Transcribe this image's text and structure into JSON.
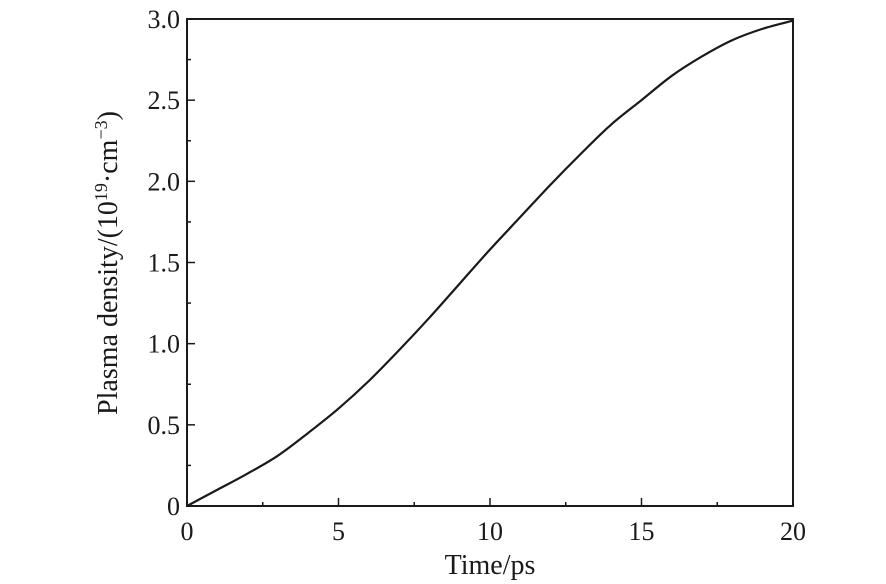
{
  "chart_data": {
    "type": "line",
    "xlabel": "Time/ps",
    "ylabel": {
      "prefix": "Plasma density/(10",
      "exp1": "19",
      "middle": "·cm",
      "exp2": "−3",
      "suffix": ")"
    },
    "xlim": [
      0,
      20
    ],
    "ylim": [
      0,
      3.0
    ],
    "xticks": [
      0,
      5,
      10,
      15,
      20
    ],
    "xtick_labels": [
      "0",
      "5",
      "10",
      "15",
      "20"
    ],
    "yticks": [
      0,
      0.5,
      1.0,
      1.5,
      2.0,
      2.5,
      3.0
    ],
    "ytick_labels": [
      "0",
      "0.5",
      "1.0",
      "1.5",
      "2.0",
      "2.5",
      "3.0"
    ],
    "grid": false,
    "series": [
      {
        "color": "#1a1a1a",
        "x": [
          0,
          1,
          2,
          3,
          4,
          5,
          6,
          7,
          8,
          9,
          10,
          11,
          12,
          13,
          14,
          15,
          16,
          17,
          18,
          19,
          20
        ],
        "y": [
          0,
          0.1,
          0.2,
          0.31,
          0.45,
          0.6,
          0.77,
          0.96,
          1.16,
          1.37,
          1.58,
          1.78,
          1.98,
          2.17,
          2.35,
          2.5,
          2.65,
          2.77,
          2.87,
          2.94,
          2.99
        ]
      }
    ]
  }
}
